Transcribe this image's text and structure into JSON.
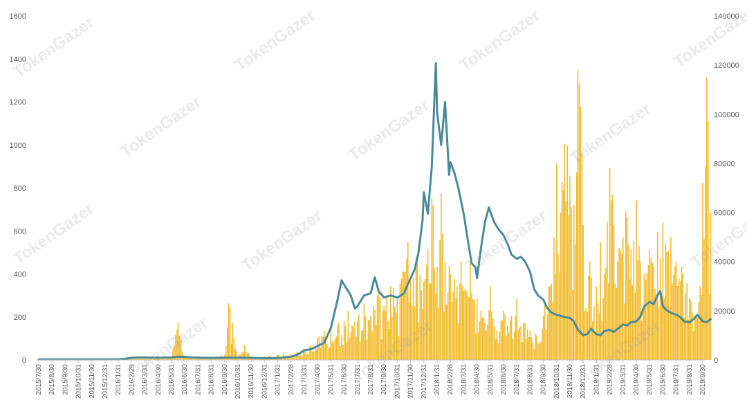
{
  "watermark_text": "TokenGazer",
  "colors": {
    "bars": "#F2BC2E",
    "line": "#4A8A98",
    "axis_text": "#595959",
    "axis_line": "#BFBFBF"
  },
  "chart_data": {
    "type": "bar",
    "title": "",
    "xlabel": "",
    "ylabel": "",
    "grid": false,
    "legend": "none",
    "x_tick_labels": [
      "2015/7/30",
      "2015/8/30",
      "2015/9/30",
      "2015/10/31",
      "2015/11/30",
      "2015/12/31",
      "2016/1/31",
      "2016/2/29",
      "2016/3/31",
      "2016/4/30",
      "2016/5/31",
      "2016/6/30",
      "2016/7/31",
      "2016/8/31",
      "2016/9/30",
      "2016/10/31",
      "2016/11/30",
      "2016/12/31",
      "2017/1/31",
      "2017/2/28",
      "2017/3/31",
      "2017/4/30",
      "2017/5/31",
      "2017/6/30",
      "2017/7/31",
      "2017/8/31",
      "2017/9/30",
      "2017/10/31",
      "2017/11/30",
      "2017/12/31",
      "2018/1/31",
      "2018/2/28",
      "2018/3/31",
      "2018/4/30",
      "2018/5/31",
      "2018/6/30",
      "2018/7/31",
      "2018/8/31",
      "2018/9/30",
      "2018/10/31",
      "2018/11/30",
      "2018/12/31",
      "2019/1/31",
      "2019/2/28",
      "2019/3/31",
      "2019/4/30",
      "2019/5/31",
      "2019/6/30",
      "2019/7/31",
      "2019/8/31",
      "2019/9/30"
    ],
    "ylim_left": [
      0,
      1600
    ],
    "yticks_left": [
      0,
      200,
      400,
      600,
      800,
      1000,
      1200,
      1400,
      1600
    ],
    "ylim_right": [
      0,
      140000
    ],
    "yticks_right": [
      0,
      20000,
      40000,
      60000,
      80000,
      100000,
      120000,
      140000
    ],
    "series": [
      {
        "type": "bar",
        "axis": "right",
        "values": [
          [
            0,
            300
          ],
          [
            1,
            300
          ],
          [
            2,
            400
          ],
          [
            3,
            500
          ],
          [
            4,
            500
          ],
          [
            5,
            500
          ],
          [
            6,
            600
          ],
          [
            7,
            700
          ],
          [
            8,
            900
          ],
          [
            9,
            1000
          ],
          [
            10,
            1200
          ],
          [
            10.5,
            15000
          ],
          [
            11,
            1500
          ],
          [
            12,
            1500
          ],
          [
            13,
            1200
          ],
          [
            14,
            2000
          ],
          [
            14.3,
            23000
          ],
          [
            14.6,
            15000
          ],
          [
            15,
            1500
          ],
          [
            15.5,
            6000
          ],
          [
            16,
            1000
          ],
          [
            17,
            1500
          ],
          [
            18,
            2000
          ],
          [
            19,
            2500
          ],
          [
            20,
            4000
          ],
          [
            20.5,
            6000
          ],
          [
            21,
            9000
          ],
          [
            21.5,
            12000
          ],
          [
            22,
            15000
          ],
          [
            22.5,
            14000
          ],
          [
            23,
            16000
          ],
          [
            23.3,
            20000
          ],
          [
            23.6,
            14000
          ],
          [
            24,
            16000
          ],
          [
            24.5,
            23000
          ],
          [
            25,
            18000
          ],
          [
            25.5,
            26000
          ],
          [
            26,
            22000
          ],
          [
            26.5,
            30000
          ],
          [
            27,
            25000
          ],
          [
            27.5,
            36000
          ],
          [
            27.8,
            48000
          ],
          [
            28,
            33000
          ],
          [
            28.5,
            40000
          ],
          [
            29,
            32000
          ],
          [
            29.3,
            45000
          ],
          [
            29.6,
            66000
          ],
          [
            30,
            38000
          ],
          [
            30.3,
            68000
          ],
          [
            30.6,
            40000
          ],
          [
            31,
            35000
          ],
          [
            31.5,
            30000
          ],
          [
            31.8,
            40000
          ],
          [
            32,
            28000
          ],
          [
            32.5,
            40000
          ],
          [
            33,
            25000
          ],
          [
            33.3,
            20000
          ],
          [
            33.6,
            15000
          ],
          [
            34,
            30000
          ],
          [
            34.5,
            12000
          ],
          [
            35,
            20000
          ],
          [
            35.3,
            14000
          ],
          [
            35.6,
            18000
          ],
          [
            36,
            25000
          ],
          [
            36.5,
            15000
          ],
          [
            37,
            12000
          ],
          [
            37.5,
            10000
          ],
          [
            38,
            18000
          ],
          [
            38.5,
            30000
          ],
          [
            38.8,
            50000
          ],
          [
            39,
            80000
          ],
          [
            39.3,
            60000
          ],
          [
            39.6,
            88000
          ],
          [
            40,
            75000
          ],
          [
            40.3,
            63000
          ],
          [
            40.6,
            118000
          ],
          [
            40.8,
            103000
          ],
          [
            41,
            55000
          ],
          [
            41.5,
            40000
          ],
          [
            42,
            30000
          ],
          [
            42.3,
            48000
          ],
          [
            42.6,
            35000
          ],
          [
            43,
            78000
          ],
          [
            43.3,
            55000
          ],
          [
            43.6,
            40000
          ],
          [
            44,
            50000
          ],
          [
            44.3,
            58000
          ],
          [
            44.6,
            45000
          ],
          [
            45,
            65000
          ],
          [
            45.3,
            40000
          ],
          [
            45.6,
            35000
          ],
          [
            46,
            45000
          ],
          [
            46.3,
            38000
          ],
          [
            46.6,
            52000
          ],
          [
            47,
            56000
          ],
          [
            47.3,
            44000
          ],
          [
            47.6,
            50000
          ],
          [
            48,
            40000
          ],
          [
            48.5,
            35000
          ],
          [
            49,
            25000
          ],
          [
            49.5,
            18000
          ],
          [
            49.8,
            30000
          ],
          [
            50,
            72000
          ],
          [
            50.3,
            115000
          ],
          [
            50.6,
            60000
          ]
        ]
      },
      {
        "type": "line",
        "axis": "left",
        "values": [
          [
            0,
            3
          ],
          [
            1,
            3
          ],
          [
            2,
            3
          ],
          [
            3,
            3
          ],
          [
            4,
            3
          ],
          [
            5,
            3
          ],
          [
            6,
            3
          ],
          [
            6.5,
            5
          ],
          [
            7,
            10
          ],
          [
            7.5,
            12
          ],
          [
            8,
            12
          ],
          [
            9,
            11
          ],
          [
            10,
            12
          ],
          [
            10.5,
            15
          ],
          [
            11,
            14
          ],
          [
            11.5,
            12
          ],
          [
            12,
            11
          ],
          [
            13,
            10
          ],
          [
            14,
            11
          ],
          [
            15,
            11
          ],
          [
            16,
            10
          ],
          [
            17,
            8
          ],
          [
            18,
            9
          ],
          [
            19,
            15
          ],
          [
            19.5,
            25
          ],
          [
            20,
            45
          ],
          [
            20.5,
            50
          ],
          [
            21,
            65
          ],
          [
            21.5,
            80
          ],
          [
            22,
            150
          ],
          [
            22.5,
            280
          ],
          [
            22.8,
            370
          ],
          [
            23,
            350
          ],
          [
            23.5,
            300
          ],
          [
            23.8,
            240
          ],
          [
            24,
            250
          ],
          [
            24.5,
            300
          ],
          [
            25,
            310
          ],
          [
            25.3,
            385
          ],
          [
            25.6,
            320
          ],
          [
            26,
            290
          ],
          [
            26.5,
            300
          ],
          [
            27,
            290
          ],
          [
            27.5,
            310
          ],
          [
            28,
            380
          ],
          [
            28.3,
            420
          ],
          [
            28.6,
            500
          ],
          [
            28.9,
            650
          ],
          [
            29,
            780
          ],
          [
            29.3,
            680
          ],
          [
            29.6,
            900
          ],
          [
            29.9,
            1380
          ],
          [
            30,
            1150
          ],
          [
            30.3,
            1000
          ],
          [
            30.6,
            1200
          ],
          [
            30.9,
            860
          ],
          [
            31,
            920
          ],
          [
            31.3,
            870
          ],
          [
            31.6,
            800
          ],
          [
            32,
            680
          ],
          [
            32.3,
            560
          ],
          [
            32.6,
            450
          ],
          [
            32.9,
            430
          ],
          [
            33,
            380
          ],
          [
            33.3,
            520
          ],
          [
            33.6,
            640
          ],
          [
            33.9,
            710
          ],
          [
            34,
            690
          ],
          [
            34.3,
            640
          ],
          [
            34.6,
            610
          ],
          [
            35,
            580
          ],
          [
            35.3,
            540
          ],
          [
            35.6,
            490
          ],
          [
            36,
            470
          ],
          [
            36.3,
            480
          ],
          [
            36.6,
            460
          ],
          [
            37,
            410
          ],
          [
            37.3,
            330
          ],
          [
            37.6,
            300
          ],
          [
            38,
            280
          ],
          [
            38.3,
            240
          ],
          [
            38.6,
            220
          ],
          [
            39,
            210
          ],
          [
            39.3,
            205
          ],
          [
            39.6,
            200
          ],
          [
            40,
            195
          ],
          [
            40.3,
            180
          ],
          [
            40.6,
            140
          ],
          [
            41,
            115
          ],
          [
            41.3,
            120
          ],
          [
            41.6,
            145
          ],
          [
            42,
            120
          ],
          [
            42.3,
            115
          ],
          [
            42.6,
            135
          ],
          [
            43,
            140
          ],
          [
            43.3,
            130
          ],
          [
            43.6,
            145
          ],
          [
            44,
            165
          ],
          [
            44.3,
            160
          ],
          [
            44.6,
            175
          ],
          [
            45,
            180
          ],
          [
            45.3,
            200
          ],
          [
            45.6,
            250
          ],
          [
            46,
            270
          ],
          [
            46.3,
            260
          ],
          [
            46.6,
            300
          ],
          [
            46.8,
            320
          ],
          [
            47,
            250
          ],
          [
            47.3,
            230
          ],
          [
            47.6,
            220
          ],
          [
            48,
            210
          ],
          [
            48.3,
            200
          ],
          [
            48.6,
            180
          ],
          [
            49,
            175
          ],
          [
            49.3,
            190
          ],
          [
            49.6,
            210
          ],
          [
            50,
            180
          ],
          [
            50.3,
            175
          ],
          [
            50.6,
            190
          ]
        ]
      }
    ]
  }
}
